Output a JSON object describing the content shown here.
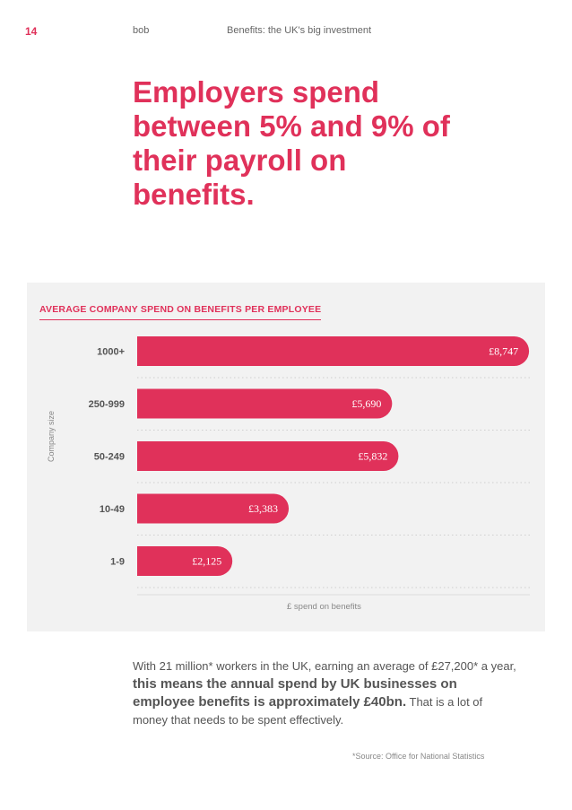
{
  "header": {
    "page_number": "14",
    "brand": "bob",
    "document_title": "Benefits: the UK's big investment"
  },
  "headline": "Employers spend between 5% and 9% of their payroll on benefits.",
  "chart_data": {
    "type": "bar",
    "orientation": "horizontal",
    "title": "AVERAGE COMPANY SPEND ON BENEFITS PER EMPLOYEE",
    "ylabel": "Company size",
    "xlabel": "£ spend on benefits",
    "categories": [
      "1000+",
      "250-999",
      "50-249",
      "10-49",
      "1-9"
    ],
    "values": [
      8747,
      5690,
      5832,
      3383,
      2125
    ],
    "value_labels": [
      "£8,747",
      "£5,690",
      "£5,832",
      "£3,383",
      "£2,125"
    ],
    "xlim": [
      0,
      9000
    ],
    "grid": "dotted horizontal",
    "bar_color": "#e0315a",
    "panel_color": "#f2f2f2"
  },
  "body": {
    "intro": "With 21 million* workers in the UK, earning an average of £27,200* a year, ",
    "emphasis": "this means the annual spend by UK businesses on employee benefits is approximately £40bn.",
    "outro": " That is a lot of money that needs to be spent effectively."
  },
  "source": "*Source: Office for National Statistics",
  "colors": {
    "accent": "#e0315a",
    "text": "#555555"
  }
}
